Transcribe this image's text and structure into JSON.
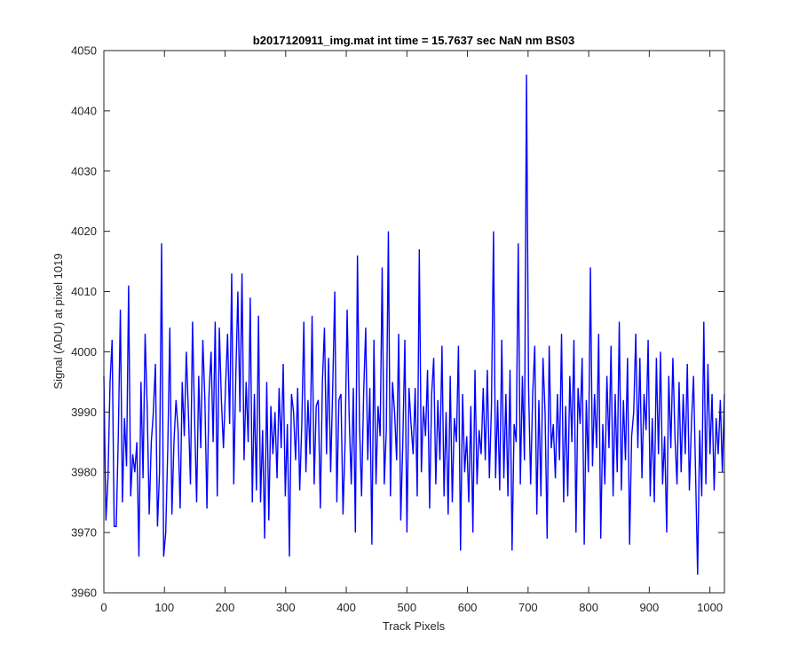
{
  "chart_data": {
    "type": "line",
    "title": "b2017120911_img.mat int time = 15.7637 sec  NaN nm BS03",
    "xlabel": "Track Pixels",
    "ylabel": "Signal (ADU) at pixel 1019",
    "xlim": [
      0,
      1024
    ],
    "ylim": [
      3960,
      4050
    ],
    "xticks": [
      0,
      100,
      200,
      300,
      400,
      500,
      600,
      700,
      800,
      900,
      1000
    ],
    "yticks": [
      3960,
      3970,
      3980,
      3990,
      4000,
      4010,
      4020,
      4030,
      4040,
      4050
    ],
    "grid": false,
    "series_color": "#0000ff",
    "series": [
      {
        "values": [
          3996,
          3972,
          3979,
          3995,
          4002,
          3971,
          3971,
          3986,
          4007,
          3975,
          3989,
          3981,
          4011,
          3976,
          3983,
          3980,
          3985,
          3966,
          3995,
          3979,
          4003,
          3991,
          3973,
          3985,
          3990,
          3998,
          3971,
          3980,
          4018,
          3966,
          3970,
          3984,
          4004,
          3973,
          3985,
          3992,
          3987,
          3974,
          3995,
          3986,
          4000,
          3990,
          3978,
          4005,
          3989,
          3975,
          3996,
          3984,
          4002,
          3992,
          3974,
          3993,
          4000,
          3985,
          4005,
          3976,
          4004,
          3992,
          3984,
          3994,
          4003,
          3988,
          4013,
          3978,
          3996,
          4010,
          3990,
          4013,
          3982,
          3995,
          3985,
          4009,
          3975,
          3993,
          3977,
          4006,
          3975,
          3987,
          3969,
          3995,
          3972,
          3991,
          3983,
          3990,
          3979,
          3994,
          3984,
          3998,
          3976,
          3988,
          3966,
          3993,
          3990,
          3982,
          3994,
          3977,
          3988,
          4005,
          3980,
          3992,
          3983,
          4006,
          3978,
          3991,
          3992,
          3974,
          3995,
          4004,
          3983,
          3999,
          3980,
          3994,
          4010,
          3975,
          3992,
          3993,
          3973,
          3985,
          4007,
          3989,
          3978,
          3994,
          3970,
          4016,
          3988,
          3976,
          3993,
          4004,
          3982,
          3994,
          3968,
          4002,
          3978,
          3991,
          3986,
          4014,
          3978,
          3987,
          4020,
          3976,
          3995,
          3990,
          3982,
          4003,
          3972,
          3985,
          4002,
          3970,
          3994,
          3988,
          3983,
          3994,
          3976,
          4017,
          3980,
          3991,
          3986,
          3997,
          3974,
          3993,
          3999,
          3978,
          3992,
          3982,
          4001,
          3976,
          3990,
          3973,
          3996,
          3975,
          3989,
          3985,
          4001,
          3967,
          3993,
          3980,
          3986,
          3975,
          3991,
          3970,
          3997,
          3978,
          3987,
          3983,
          3994,
          3982,
          3997,
          3979,
          3991,
          4020,
          3979,
          3992,
          3977,
          4002,
          3979,
          3993,
          3976,
          3997,
          3967,
          3988,
          3985,
          4018,
          3978,
          3996,
          3982,
          4046,
          3994,
          3978,
          3993,
          4001,
          3973,
          3992,
          3976,
          3999,
          3990,
          3969,
          4001,
          3984,
          3988,
          3979,
          3993,
          3982,
          4003,
          3975,
          3991,
          3976,
          3996,
          3985,
          4002,
          3970,
          3994,
          3988,
          3999,
          3968,
          3992,
          3980,
          4014,
          3981,
          3993,
          3984,
          4003,
          3969,
          3988,
          3978,
          3996,
          3984,
          4001,
          3976,
          3993,
          3980,
          4005,
          3977,
          3992,
          3982,
          3999,
          3968,
          3986,
          3990,
          4003,
          3984,
          3999,
          3979,
          3993,
          3987,
          4002,
          3976,
          3989,
          3975,
          3999,
          3983,
          4000,
          3978,
          3986,
          3970,
          3996,
          3984,
          3999,
          3986,
          3978,
          3995,
          3980,
          3993,
          3983,
          3998,
          3977,
          3988,
          3996,
          3980,
          3963,
          3987,
          3976,
          4005,
          3978,
          3998,
          3983,
          3993,
          3977,
          3989,
          3983,
          3992,
          3980,
          3993
        ]
      }
    ]
  }
}
